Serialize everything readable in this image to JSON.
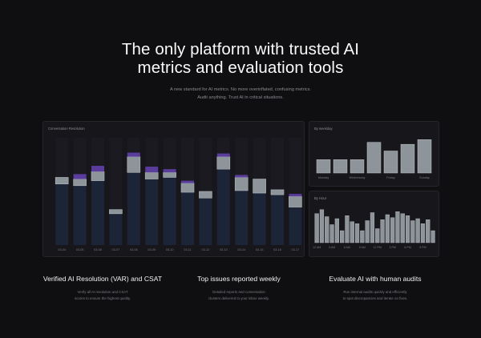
{
  "hero": {
    "title_line1": "The only platform with trusted AI",
    "title_line2": "metrics and evaluation tools",
    "subtitle_line1": "A new standard for AI metrics. No more overinflated, confusing metrics.",
    "subtitle_line2": "Audit anything. Trust AI in critical situations."
  },
  "colors": {
    "bar_base": "#1c2538",
    "bar_mid": "#8d949a",
    "bar_top": "#5a3c9c",
    "page_bg": "#0f0e10"
  },
  "chart_data": [
    {
      "type": "bar",
      "title": "Conversation Resolution",
      "categories": [
        "03-04",
        "03-05",
        "03-06",
        "03-07",
        "03-08",
        "03-09",
        "03-10",
        "03-11",
        "03-12",
        "03-13",
        "03-14",
        "03-15",
        "03-16",
        "03-17"
      ],
      "series": [
        {
          "values": [
            74,
            72,
            78,
            38,
            88,
            80,
            82,
            64,
            57,
            92,
            66,
            63,
            61,
            46
          ]
        },
        {
          "values": [
            8,
            8,
            11,
            5,
            19,
            8,
            6,
            11,
            8,
            15,
            16,
            17,
            6,
            13
          ]
        },
        {
          "values": [
            0,
            6,
            7,
            0,
            5,
            7,
            4,
            3,
            0,
            4,
            3,
            0,
            0,
            3
          ]
        }
      ],
      "ylim": [
        0,
        130
      ]
    },
    {
      "type": "bar",
      "title": "By weekday",
      "categories": [
        "Monday",
        "",
        "Wednesday",
        "",
        "Friday",
        "",
        "Sunday"
      ],
      "values": [
        40,
        40,
        40,
        92,
        66,
        86,
        100
      ],
      "ylim": [
        0,
        120
      ]
    },
    {
      "type": "bar",
      "title": "By Hour",
      "categories": [
        "12 AM",
        "",
        "",
        "3 AM",
        "",
        "",
        "6 AM",
        "",
        "",
        "9 AM",
        "",
        "",
        "12 PM",
        "",
        "",
        "3 PM",
        "",
        "",
        "6 PM",
        "",
        "",
        "9 PM",
        "",
        ""
      ],
      "x_ticks": [
        "12 AM",
        "3 AM",
        "6 AM",
        "9 AM",
        "12 PM",
        "3 PM",
        "6 PM",
        "9 PM"
      ],
      "values": [
        58,
        66,
        52,
        36,
        48,
        24,
        54,
        42,
        38,
        24,
        44,
        60,
        28,
        46,
        56,
        50,
        62,
        58,
        54,
        44,
        48,
        38,
        46,
        24
      ],
      "ylim": [
        0,
        80
      ]
    }
  ],
  "features": [
    {
      "title": "Verified AI Resolution (VAR) and CSAT",
      "desc_line1": "Verify all AI resolution and CSAT",
      "desc_line2": "scores to ensure the highest quality."
    },
    {
      "title": "Top issues reported weekly",
      "desc_line1": "Detailed reports and conversation",
      "desc_line2": "clusters delivered to your inbox weekly."
    },
    {
      "title": "Evaluate AI with human audits",
      "desc_line1": "Run internal audits quickly and efficiently",
      "desc_line2": "to spot discrepancies and iterate on fixes."
    }
  ]
}
